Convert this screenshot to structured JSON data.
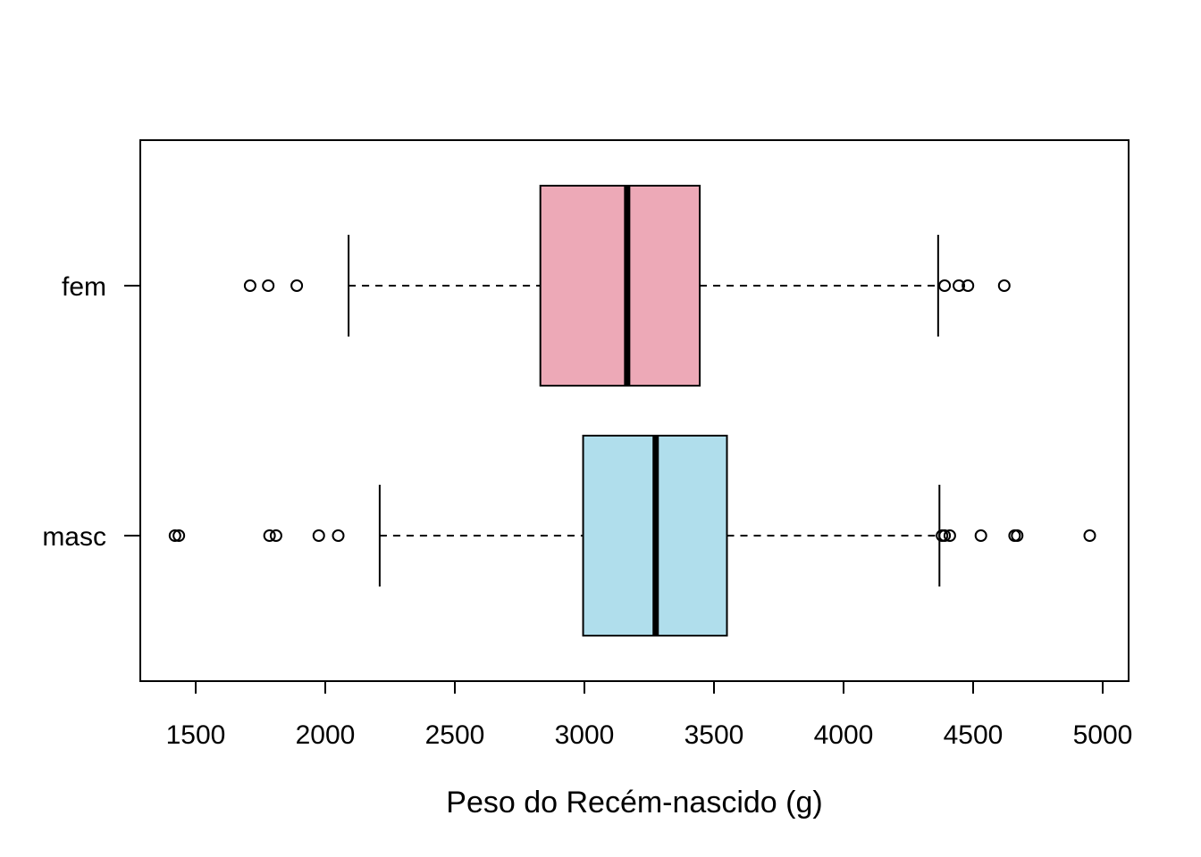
{
  "chart_data": {
    "type": "boxplot",
    "orientation": "horizontal",
    "title": "",
    "xlabel": "Peso do Recém-nascido (g)",
    "ylabel": "",
    "xlim": [
      1300,
      5100
    ],
    "xticks": [
      1500,
      2000,
      2500,
      3000,
      3500,
      4000,
      4500,
      5000
    ],
    "xtick_labels": [
      "1500",
      "2000",
      "2500",
      "3000",
      "3500",
      "4000",
      "4500",
      "5000"
    ],
    "categories": [
      "fem",
      "masc"
    ],
    "grid": false,
    "legend": "none",
    "series": [
      {
        "name": "fem",
        "color": "#EDA9B7",
        "whisker_low": 2090,
        "q1": 2830,
        "median": 3165,
        "q3": 3445,
        "whisker_high": 4365,
        "outliers": [
          1710,
          1780,
          1890,
          4390,
          4445,
          4480,
          4620
        ]
      },
      {
        "name": "masc",
        "color": "#B0DEEC",
        "whisker_low": 2210,
        "q1": 2995,
        "median": 3275,
        "q3": 3550,
        "whisker_high": 4370,
        "outliers": [
          1420,
          1435,
          1785,
          1810,
          1975,
          2050,
          4380,
          4390,
          4410,
          4530,
          4660,
          4670,
          4950
        ]
      }
    ]
  }
}
